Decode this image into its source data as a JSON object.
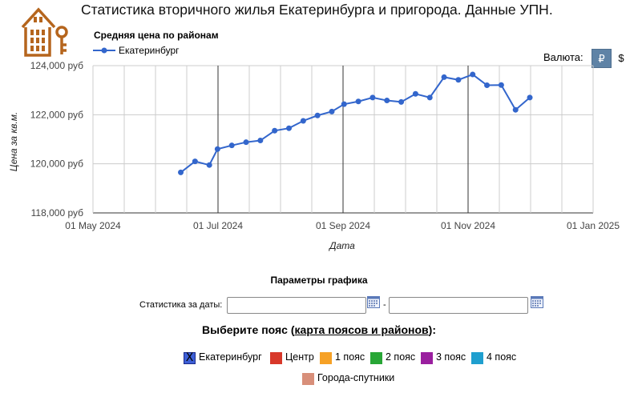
{
  "page": {
    "title": "Статистика вторичного жилья Екатеринбурга и пригорода. Данные УПН."
  },
  "controls": {
    "currency_label": "Валюта:",
    "currency_rub": "₽",
    "currency_usd": "$"
  },
  "params": {
    "title": "Параметры графика",
    "date_label": "Статистика за даты:",
    "date_from": "",
    "date_to": "",
    "dash": "-"
  },
  "belts": {
    "heading_prefix": "Выберите пояс (",
    "heading_link": "карта поясов и районов",
    "heading_suffix": "):",
    "items": [
      {
        "label": "Екатеринбург",
        "color": "#3d5fd6",
        "checked": true
      },
      {
        "label": "Центр",
        "color": "#d8382a",
        "checked": false
      },
      {
        "label": "1 пояс",
        "color": "#f6a126",
        "checked": false
      },
      {
        "label": "2 пояс",
        "color": "#28a636",
        "checked": false
      },
      {
        "label": "3 пояс",
        "color": "#9a1f9f",
        "checked": false
      },
      {
        "label": "4 пояс",
        "color": "#1f9fcf",
        "checked": false
      },
      {
        "label": "Города-спутники",
        "color": "#d88f7a",
        "checked": false
      }
    ]
  },
  "chart_data": {
    "type": "line",
    "title": "Средняя цена по районам",
    "xlabel": "Дата",
    "ylabel": "Цена за кв.м.",
    "x_ticks": [
      "01 May 2024",
      "01 Jul 2024",
      "01 Sep 2024",
      "01 Nov 2024",
      "01 Jan 2025"
    ],
    "y_ticks": [
      "118,000 руб",
      "120,000 руб",
      "122,000 руб",
      "124,000 руб"
    ],
    "xlim": [
      "2024-05-01",
      "2025-01-01"
    ],
    "ylim": [
      118000,
      124000
    ],
    "line_color": "#3366cc",
    "legend_position": "top-left",
    "series": [
      {
        "name": "Екатеринбург",
        "points": [
          {
            "x": "2024-06-13",
            "y": 119650
          },
          {
            "x": "2024-06-20",
            "y": 120100
          },
          {
            "x": "2024-06-27",
            "y": 119950
          },
          {
            "x": "2024-07-01",
            "y": 120600
          },
          {
            "x": "2024-07-08",
            "y": 120750
          },
          {
            "x": "2024-07-15",
            "y": 120880
          },
          {
            "x": "2024-07-22",
            "y": 120950
          },
          {
            "x": "2024-07-29",
            "y": 121350
          },
          {
            "x": "2024-08-05",
            "y": 121450
          },
          {
            "x": "2024-08-12",
            "y": 121750
          },
          {
            "x": "2024-08-19",
            "y": 121970
          },
          {
            "x": "2024-08-26",
            "y": 122130
          },
          {
            "x": "2024-09-01",
            "y": 122430
          },
          {
            "x": "2024-09-08",
            "y": 122540
          },
          {
            "x": "2024-09-15",
            "y": 122700
          },
          {
            "x": "2024-09-22",
            "y": 122580
          },
          {
            "x": "2024-09-29",
            "y": 122520
          },
          {
            "x": "2024-10-06",
            "y": 122850
          },
          {
            "x": "2024-10-13",
            "y": 122700
          },
          {
            "x": "2024-10-20",
            "y": 123530
          },
          {
            "x": "2024-10-27",
            "y": 123420
          },
          {
            "x": "2024-11-03",
            "y": 123640
          },
          {
            "x": "2024-11-10",
            "y": 123200
          },
          {
            "x": "2024-11-17",
            "y": 123210
          },
          {
            "x": "2024-11-24",
            "y": 122200
          },
          {
            "x": "2024-12-01",
            "y": 122700
          }
        ]
      }
    ]
  }
}
